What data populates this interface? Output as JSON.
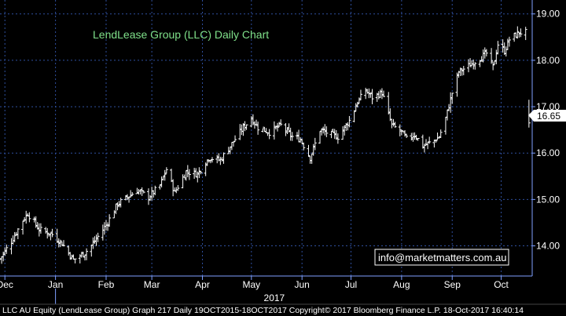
{
  "chart_data": {
    "type": "ohlc",
    "title": "LendLease Group (LLC) Daily Chart",
    "ylim": [
      13.35,
      19.3
    ],
    "y_ticks": [
      "14.00",
      "15.00",
      "16.00",
      "17.00",
      "18.00",
      "19.00"
    ],
    "x_range": [
      "2016-11-28",
      "2017-10-20"
    ],
    "months": [
      {
        "label": "Dec",
        "date": "2016-12-01"
      },
      {
        "label": "Jan",
        "date": "2017-01-01"
      },
      {
        "label": "Feb",
        "date": "2017-02-01"
      },
      {
        "label": "Mar",
        "date": "2017-03-01"
      },
      {
        "label": "Apr",
        "date": "2017-04-01"
      },
      {
        "label": "May",
        "date": "2017-05-01"
      },
      {
        "label": "Jun",
        "date": "2017-06-01"
      },
      {
        "label": "Jul",
        "date": "2017-07-01"
      },
      {
        "label": "Aug",
        "date": "2017-08-01"
      },
      {
        "label": "Sep",
        "date": "2017-09-01"
      },
      {
        "label": "Oct",
        "date": "2017-10-01"
      }
    ],
    "year_label": {
      "label": "2017",
      "date": "2017-05-15"
    },
    "last_price": "16.65",
    "grid": true,
    "background": "#000000",
    "bar_color": "#ffffff",
    "grid_color": "#2f4f9e",
    "axis_color": "#7fa0ff",
    "price_anchors": [
      [
        "2016-11-28",
        13.72
      ],
      [
        "2016-12-05",
        14.1
      ],
      [
        "2016-12-12",
        14.55
      ],
      [
        "2016-12-15",
        14.7
      ],
      [
        "2016-12-22",
        14.35
      ],
      [
        "2016-12-30",
        14.25
      ],
      [
        "2017-01-05",
        14.05
      ],
      [
        "2017-01-12",
        13.7
      ],
      [
        "2017-01-19",
        13.85
      ],
      [
        "2017-01-24",
        14.05
      ],
      [
        "2017-02-01",
        14.45
      ],
      [
        "2017-02-08",
        14.9
      ],
      [
        "2017-02-14",
        15.05
      ],
      [
        "2017-02-20",
        15.2
      ],
      [
        "2017-02-27",
        15.05
      ],
      [
        "2017-03-06",
        15.3
      ],
      [
        "2017-03-10",
        15.65
      ],
      [
        "2017-03-15",
        15.15
      ],
      [
        "2017-03-22",
        15.6
      ],
      [
        "2017-03-29",
        15.55
      ],
      [
        "2017-04-05",
        15.9
      ],
      [
        "2017-04-12",
        15.85
      ],
      [
        "2017-04-19",
        16.2
      ],
      [
        "2017-04-26",
        16.55
      ],
      [
        "2017-05-01",
        16.75
      ],
      [
        "2017-05-05",
        16.55
      ],
      [
        "2017-05-12",
        16.45
      ],
      [
        "2017-05-19",
        16.6
      ],
      [
        "2017-05-26",
        16.35
      ],
      [
        "2017-05-31",
        16.3
      ],
      [
        "2017-06-06",
        15.9
      ],
      [
        "2017-06-12",
        16.5
      ],
      [
        "2017-06-19",
        16.4
      ],
      [
        "2017-06-23",
        16.35
      ],
      [
        "2017-06-30",
        16.7
      ],
      [
        "2017-07-05",
        17.1
      ],
      [
        "2017-07-10",
        17.35
      ],
      [
        "2017-07-14",
        17.2
      ],
      [
        "2017-07-20",
        17.3
      ],
      [
        "2017-07-26",
        16.6
      ],
      [
        "2017-08-01",
        16.45
      ],
      [
        "2017-08-04",
        16.3
      ],
      [
        "2017-08-09",
        16.4
      ],
      [
        "2017-08-14",
        16.15
      ],
      [
        "2017-08-20",
        16.25
      ],
      [
        "2017-08-24",
        16.35
      ],
      [
        "2017-08-28",
        16.75
      ],
      [
        "2017-09-01",
        17.3
      ],
      [
        "2017-09-05",
        17.75
      ],
      [
        "2017-09-12",
        17.9
      ],
      [
        "2017-09-18",
        18.05
      ],
      [
        "2017-09-22",
        18.15
      ],
      [
        "2017-09-26",
        17.85
      ],
      [
        "2017-09-29",
        18.35
      ],
      [
        "2017-10-03",
        18.2
      ],
      [
        "2017-10-06",
        18.45
      ],
      [
        "2017-10-12",
        18.6
      ],
      [
        "2017-10-16",
        18.6
      ]
    ],
    "final_bar": {
      "date": "2017-10-18",
      "high": 17.15,
      "low": 16.55,
      "close": 16.65
    }
  },
  "contact_box": {
    "text": "info@marketmatters.com.au"
  },
  "footer": {
    "text": "LLC AU Equity (LendLease Group) Graph 217  Daily 19OCT2015-18OCT2017 Copyright© 2017 Bloomberg Finance L.P. 18-Oct-2017 16:40:14"
  }
}
